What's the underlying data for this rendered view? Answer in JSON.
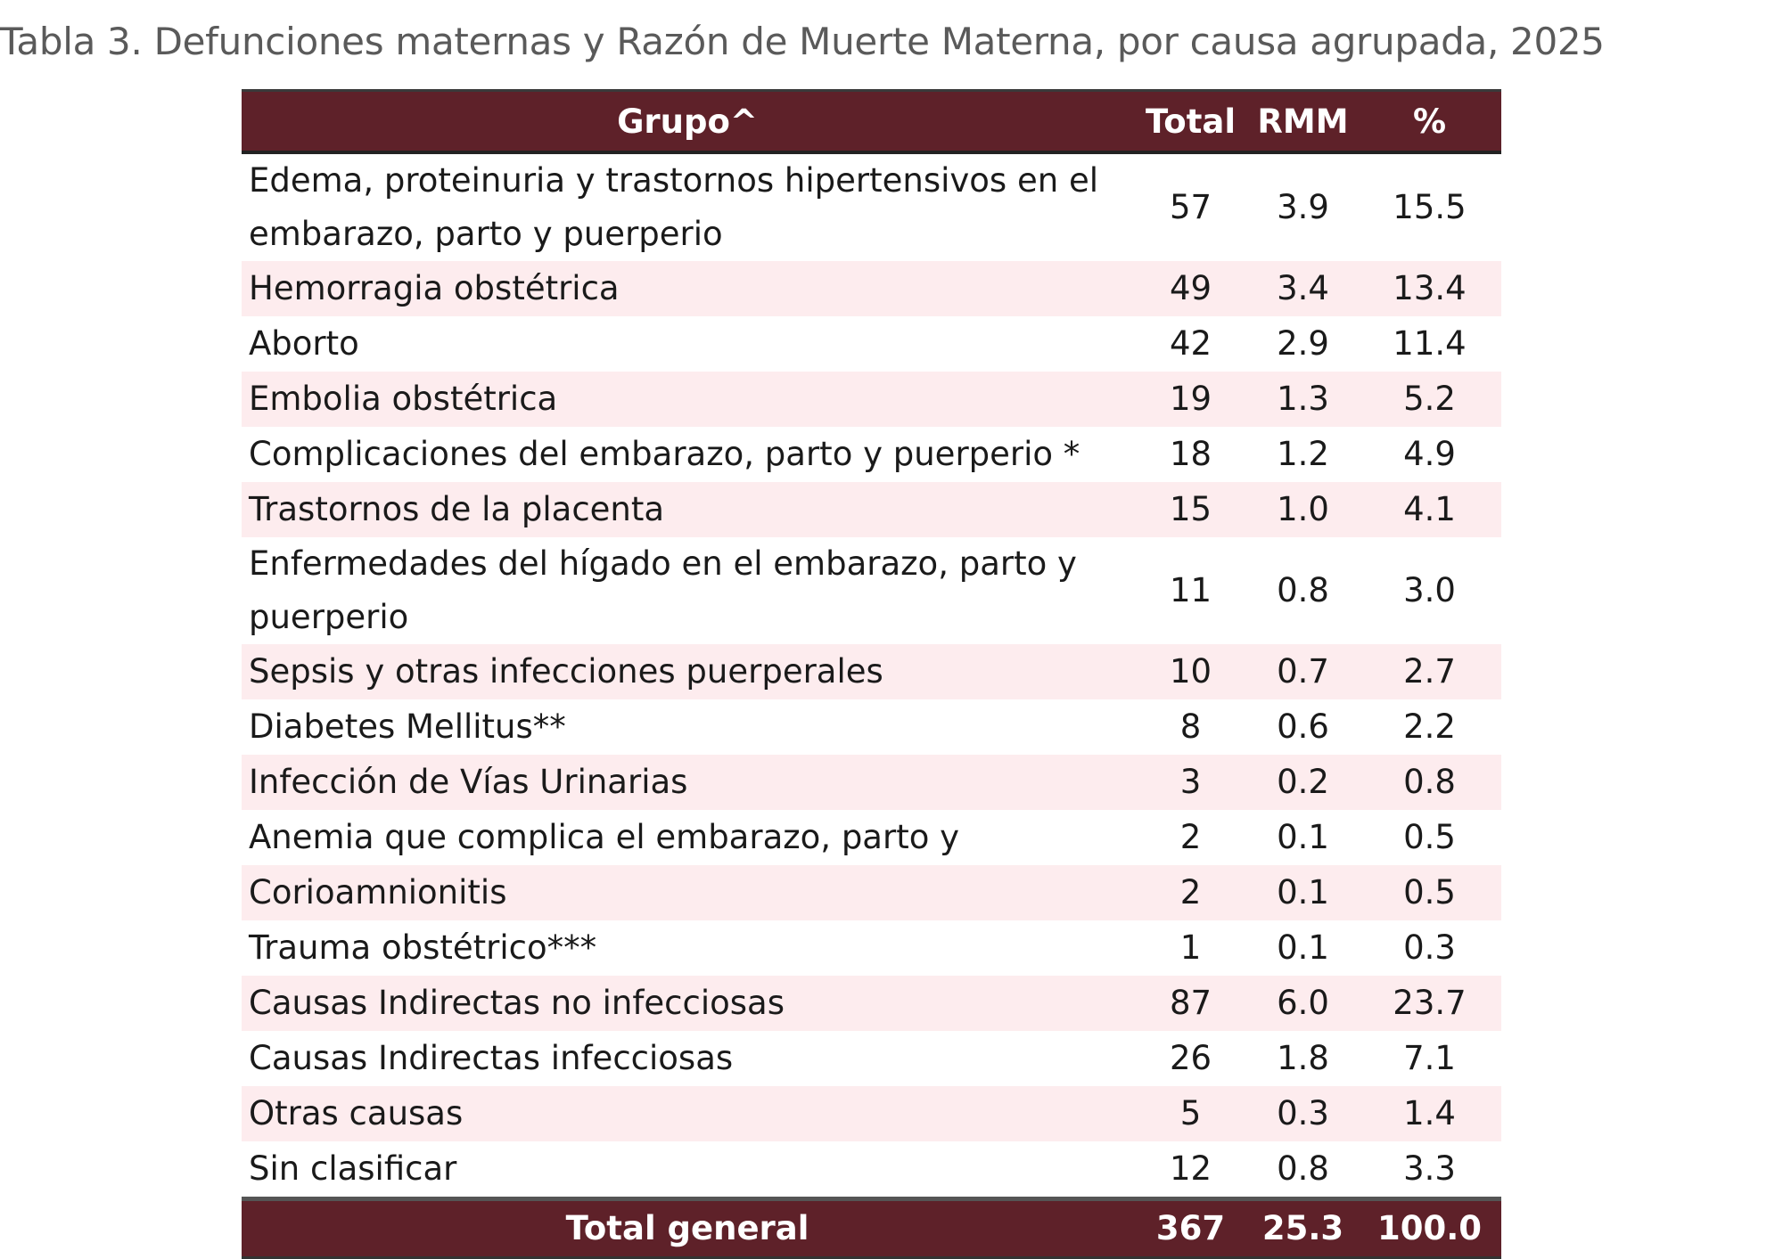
{
  "title": "Tabla 3. Defunciones maternas y Razón de Muerte Materna, por causa agrupada, 2025",
  "table": {
    "header": [
      "Grupo^",
      "Total",
      "RMM",
      "%"
    ],
    "rows": [
      [
        "Edema, proteinuria y trastornos hipertensivos en el embarazo, parto y puerperio",
        "57",
        "3.9",
        "15.5"
      ],
      [
        "Hemorragia obstétrica",
        "49",
        "3.4",
        "13.4"
      ],
      [
        "Aborto",
        "42",
        "2.9",
        "11.4"
      ],
      [
        "Embolia obstétrica",
        "19",
        "1.3",
        "5.2"
      ],
      [
        "Complicaciones del embarazo, parto y puerperio *",
        "18",
        "1.2",
        "4.9"
      ],
      [
        "Trastornos de la placenta",
        "15",
        "1.0",
        "4.1"
      ],
      [
        "Enfermedades del hígado en el embarazo, parto y puerperio",
        "11",
        "0.8",
        "3.0"
      ],
      [
        "Sepsis y otras infecciones puerperales",
        "10",
        "0.7",
        "2.7"
      ],
      [
        "Diabetes Mellitus**",
        "8",
        "0.6",
        "2.2"
      ],
      [
        "Infección de Vías Urinarias",
        "3",
        "0.2",
        "0.8"
      ],
      [
        "Anemia que complica el embarazo, parto y",
        "2",
        "0.1",
        "0.5"
      ],
      [
        "Corioamnionitis",
        "2",
        "0.1",
        "0.5"
      ],
      [
        "Trauma obstétrico***",
        "1",
        "0.1",
        "0.3"
      ],
      [
        "Causas Indirectas no infecciosas",
        "87",
        "6.0",
        "23.7"
      ],
      [
        "Causas Indirectas  infecciosas",
        "26",
        "1.8",
        "7.1"
      ],
      [
        "Otras causas",
        "5",
        "0.3",
        "1.4"
      ],
      [
        "Sin clasificar",
        "12",
        "0.8",
        "3.3"
      ]
    ],
    "total": [
      "Total general",
      "367",
      "25.3",
      "100.0"
    ]
  }
}
